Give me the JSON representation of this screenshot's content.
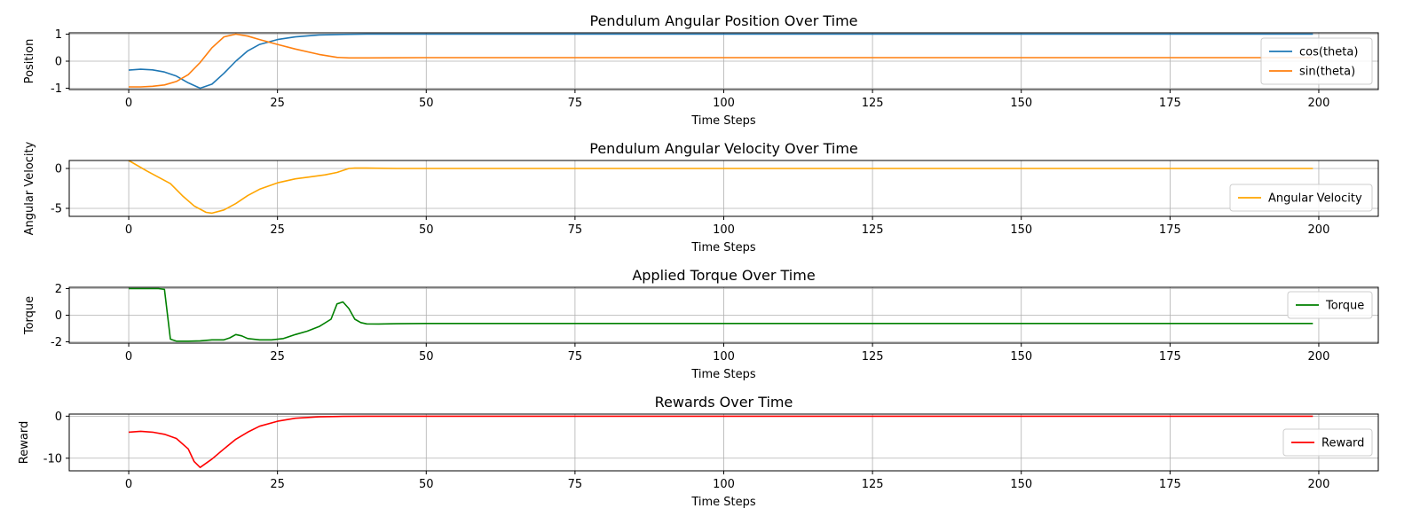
{
  "chart_data": [
    {
      "type": "line",
      "title": "Pendulum Angular Position Over Time",
      "xlabel": "Time Steps",
      "ylabel": "Position",
      "xlim": [
        -10,
        210
      ],
      "ylim": [
        -1.05,
        1.05
      ],
      "xticks": [
        0,
        25,
        50,
        75,
        100,
        125,
        150,
        175,
        200
      ],
      "yticks": [
        -1,
        0,
        1
      ],
      "grid": true,
      "legend_position": "right",
      "series": [
        {
          "name": "cos(theta)",
          "color": "#1f77b4",
          "points": [
            [
              0,
              -0.33
            ],
            [
              2,
              -0.3
            ],
            [
              4,
              -0.32
            ],
            [
              6,
              -0.4
            ],
            [
              8,
              -0.55
            ],
            [
              10,
              -0.8
            ],
            [
              12,
              -1.0
            ],
            [
              14,
              -0.85
            ],
            [
              16,
              -0.45
            ],
            [
              18,
              0.0
            ],
            [
              20,
              0.38
            ],
            [
              22,
              0.62
            ],
            [
              25,
              0.8
            ],
            [
              28,
              0.9
            ],
            [
              32,
              0.97
            ],
            [
              36,
              0.99
            ],
            [
              40,
              1.0
            ],
            [
              50,
              1.0
            ],
            [
              100,
              1.0
            ],
            [
              150,
              1.0
            ],
            [
              199,
              1.0
            ]
          ]
        },
        {
          "name": "sin(theta)",
          "color": "#ff7f0e",
          "points": [
            [
              0,
              -0.95
            ],
            [
              2,
              -0.95
            ],
            [
              4,
              -0.93
            ],
            [
              6,
              -0.88
            ],
            [
              8,
              -0.75
            ],
            [
              10,
              -0.5
            ],
            [
              12,
              -0.05
            ],
            [
              14,
              0.5
            ],
            [
              16,
              0.9
            ],
            [
              18,
              1.0
            ],
            [
              20,
              0.93
            ],
            [
              22,
              0.8
            ],
            [
              25,
              0.62
            ],
            [
              28,
              0.45
            ],
            [
              32,
              0.25
            ],
            [
              35,
              0.14
            ],
            [
              37,
              0.12
            ],
            [
              40,
              0.12
            ],
            [
              50,
              0.13
            ],
            [
              100,
              0.13
            ],
            [
              150,
              0.13
            ],
            [
              199,
              0.13
            ]
          ]
        }
      ]
    },
    {
      "type": "line",
      "title": "Pendulum Angular Velocity Over Time",
      "xlabel": "Time Steps",
      "ylabel": "Angular Velocity",
      "xlim": [
        -10,
        210
      ],
      "ylim": [
        -6.0,
        1.0
      ],
      "xticks": [
        0,
        25,
        50,
        75,
        100,
        125,
        150,
        175,
        200
      ],
      "yticks": [
        -5,
        0
      ],
      "grid": true,
      "legend_position": "lower right",
      "series": [
        {
          "name": "Angular Velocity",
          "color": "#ffa500",
          "points": [
            [
              0,
              1.0
            ],
            [
              3,
              -0.3
            ],
            [
              7,
              -1.9
            ],
            [
              9,
              -3.4
            ],
            [
              11,
              -4.7
            ],
            [
              13,
              -5.5
            ],
            [
              14,
              -5.6
            ],
            [
              16,
              -5.2
            ],
            [
              18,
              -4.4
            ],
            [
              20,
              -3.4
            ],
            [
              22,
              -2.6
            ],
            [
              25,
              -1.8
            ],
            [
              28,
              -1.3
            ],
            [
              30,
              -1.1
            ],
            [
              33,
              -0.8
            ],
            [
              35,
              -0.5
            ],
            [
              37,
              0.0
            ],
            [
              38,
              0.05
            ],
            [
              40,
              0.05
            ],
            [
              45,
              0.0
            ],
            [
              199,
              0.0
            ]
          ]
        }
      ]
    },
    {
      "type": "line",
      "title": "Applied Torque Over Time",
      "xlabel": "Time Steps",
      "ylabel": "Torque",
      "xlim": [
        -10,
        210
      ],
      "ylim": [
        -2.1,
        2.1
      ],
      "xticks": [
        0,
        25,
        50,
        75,
        100,
        125,
        150,
        175,
        200
      ],
      "yticks": [
        -2,
        0,
        2
      ],
      "grid": true,
      "legend_position": "upper right",
      "series": [
        {
          "name": "Torque",
          "color": "#008000",
          "points": [
            [
              0,
              2.0
            ],
            [
              5,
              2.0
            ],
            [
              6,
              1.95
            ],
            [
              7,
              -1.8
            ],
            [
              8,
              -1.95
            ],
            [
              10,
              -1.95
            ],
            [
              12,
              -1.93
            ],
            [
              14,
              -1.85
            ],
            [
              16,
              -1.85
            ],
            [
              17,
              -1.7
            ],
            [
              18,
              -1.45
            ],
            [
              19,
              -1.55
            ],
            [
              20,
              -1.75
            ],
            [
              22,
              -1.85
            ],
            [
              24,
              -1.85
            ],
            [
              26,
              -1.75
            ],
            [
              28,
              -1.45
            ],
            [
              30,
              -1.2
            ],
            [
              32,
              -0.85
            ],
            [
              34,
              -0.3
            ],
            [
              35,
              0.85
            ],
            [
              36,
              1.0
            ],
            [
              37,
              0.5
            ],
            [
              38,
              -0.3
            ],
            [
              39,
              -0.55
            ],
            [
              40,
              -0.65
            ],
            [
              42,
              -0.66
            ],
            [
              45,
              -0.64
            ],
            [
              50,
              -0.62
            ],
            [
              100,
              -0.62
            ],
            [
              150,
              -0.62
            ],
            [
              199,
              -0.62
            ]
          ]
        }
      ]
    },
    {
      "type": "line",
      "title": "Rewards Over Time",
      "xlabel": "Time Steps",
      "ylabel": "Reward",
      "xlim": [
        -10,
        210
      ],
      "ylim": [
        -13.0,
        0.5
      ],
      "xticks": [
        0,
        25,
        50,
        75,
        100,
        125,
        150,
        175,
        200
      ],
      "yticks": [
        -10,
        0
      ],
      "grid": true,
      "legend_position": "right",
      "series": [
        {
          "name": "Reward",
          "color": "#ff0000",
          "points": [
            [
              0,
              -3.8
            ],
            [
              2,
              -3.6
            ],
            [
              4,
              -3.8
            ],
            [
              6,
              -4.3
            ],
            [
              8,
              -5.3
            ],
            [
              10,
              -7.8
            ],
            [
              11,
              -10.8
            ],
            [
              12,
              -12.2
            ],
            [
              14,
              -10.2
            ],
            [
              16,
              -7.8
            ],
            [
              18,
              -5.5
            ],
            [
              20,
              -3.8
            ],
            [
              22,
              -2.4
            ],
            [
              25,
              -1.2
            ],
            [
              28,
              -0.5
            ],
            [
              32,
              -0.15
            ],
            [
              36,
              -0.05
            ],
            [
              40,
              0.0
            ],
            [
              199,
              0.0
            ]
          ]
        }
      ]
    }
  ]
}
